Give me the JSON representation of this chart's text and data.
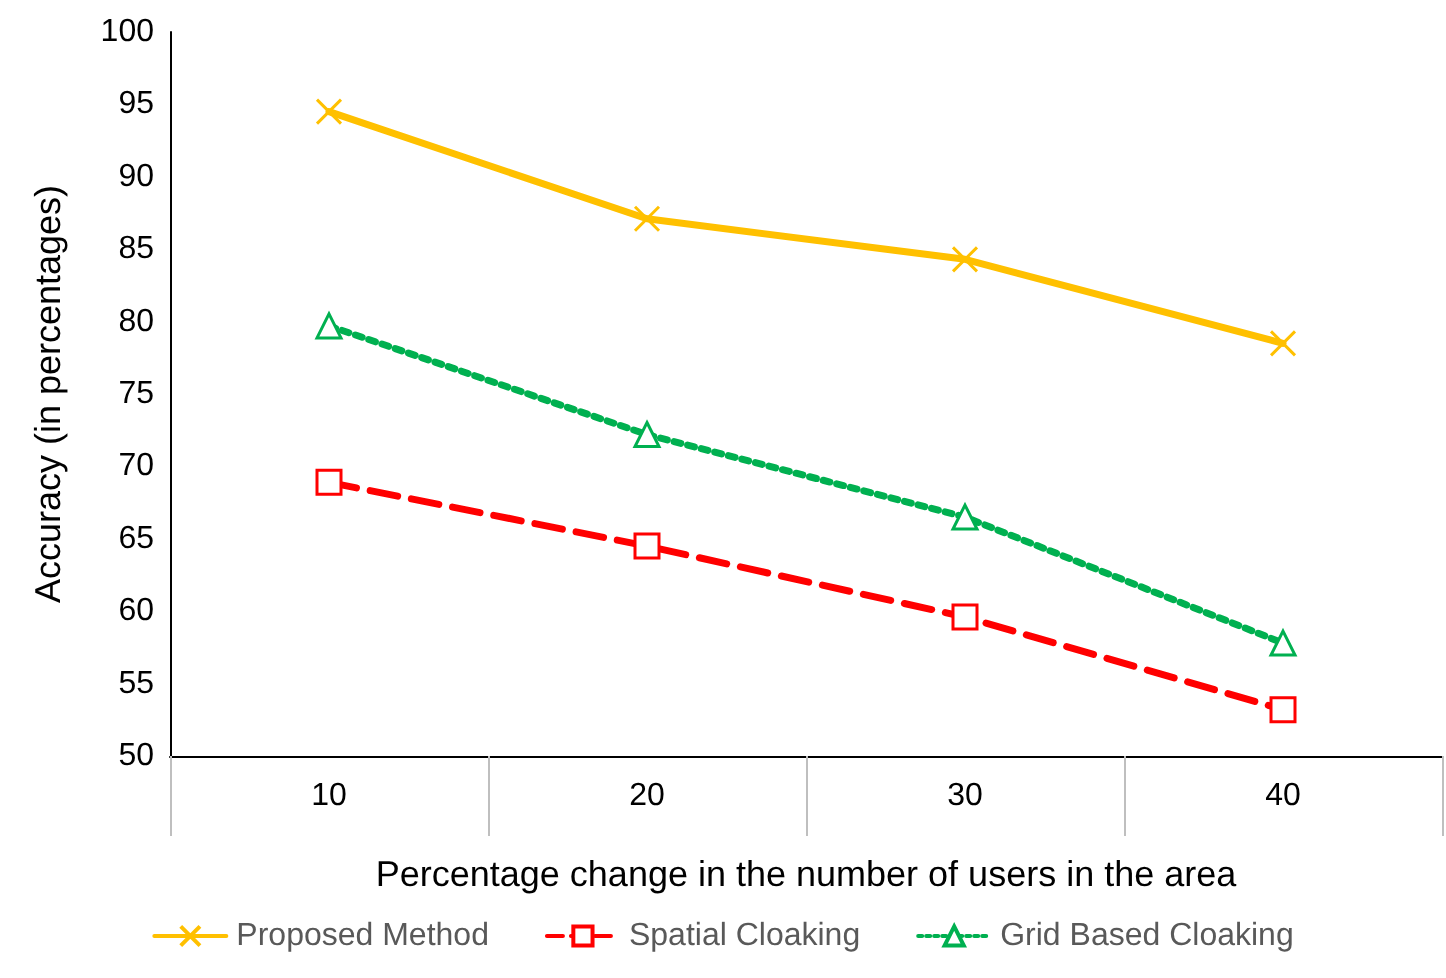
{
  "chart_data": {
    "type": "line",
    "xlabel": "Percentage change in the number of users in the area",
    "ylabel": "Accuracy (in percentages)",
    "categories": [
      "10",
      "20",
      "30",
      "40"
    ],
    "series": [
      {
        "name": "Proposed Method",
        "color": "#ffc000",
        "marker": "cross",
        "line_style": "solid",
        "values": [
          94.5,
          87.1,
          84.3,
          78.5
        ]
      },
      {
        "name": "Spatial Cloaking",
        "color": "#ff0000",
        "marker": "square",
        "line_style": "dashed",
        "values": [
          68.9,
          64.5,
          59.6,
          53.2
        ]
      },
      {
        "name": "Grid Based Cloaking",
        "color": "#00b050",
        "marker": "triangle",
        "line_style": "dotted",
        "values": [
          79.7,
          72.2,
          66.5,
          57.8
        ]
      }
    ],
    "ylim": [
      50,
      100
    ],
    "yticks": [
      50,
      55,
      60,
      65,
      70,
      75,
      80,
      85,
      90,
      95,
      100
    ],
    "grid": false,
    "legend": "bottom"
  }
}
